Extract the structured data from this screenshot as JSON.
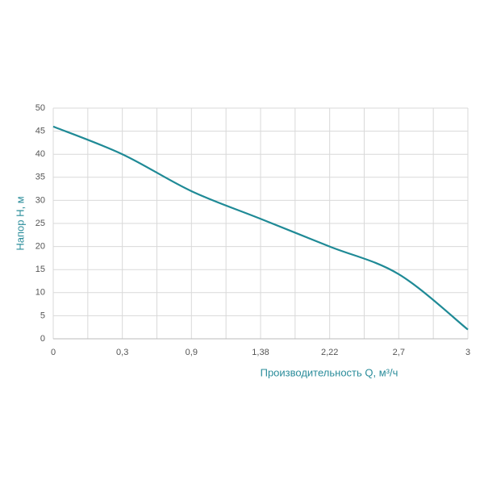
{
  "chart_data": {
    "type": "line",
    "xlabel": "Производительность Q, м³/ч",
    "ylabel": "Напор H, м",
    "categories": [
      "0",
      "0,3",
      "0,9",
      "1,38",
      "2,22",
      "2,7",
      "3"
    ],
    "series": [
      {
        "name": "H",
        "color": "#1f8a96",
        "values": [
          46,
          40,
          32,
          26,
          20,
          14,
          2
        ]
      }
    ],
    "ylim": [
      0,
      50
    ],
    "yticks": [
      0,
      5,
      10,
      15,
      20,
      25,
      30,
      35,
      40,
      45,
      50
    ],
    "grid": true
  }
}
